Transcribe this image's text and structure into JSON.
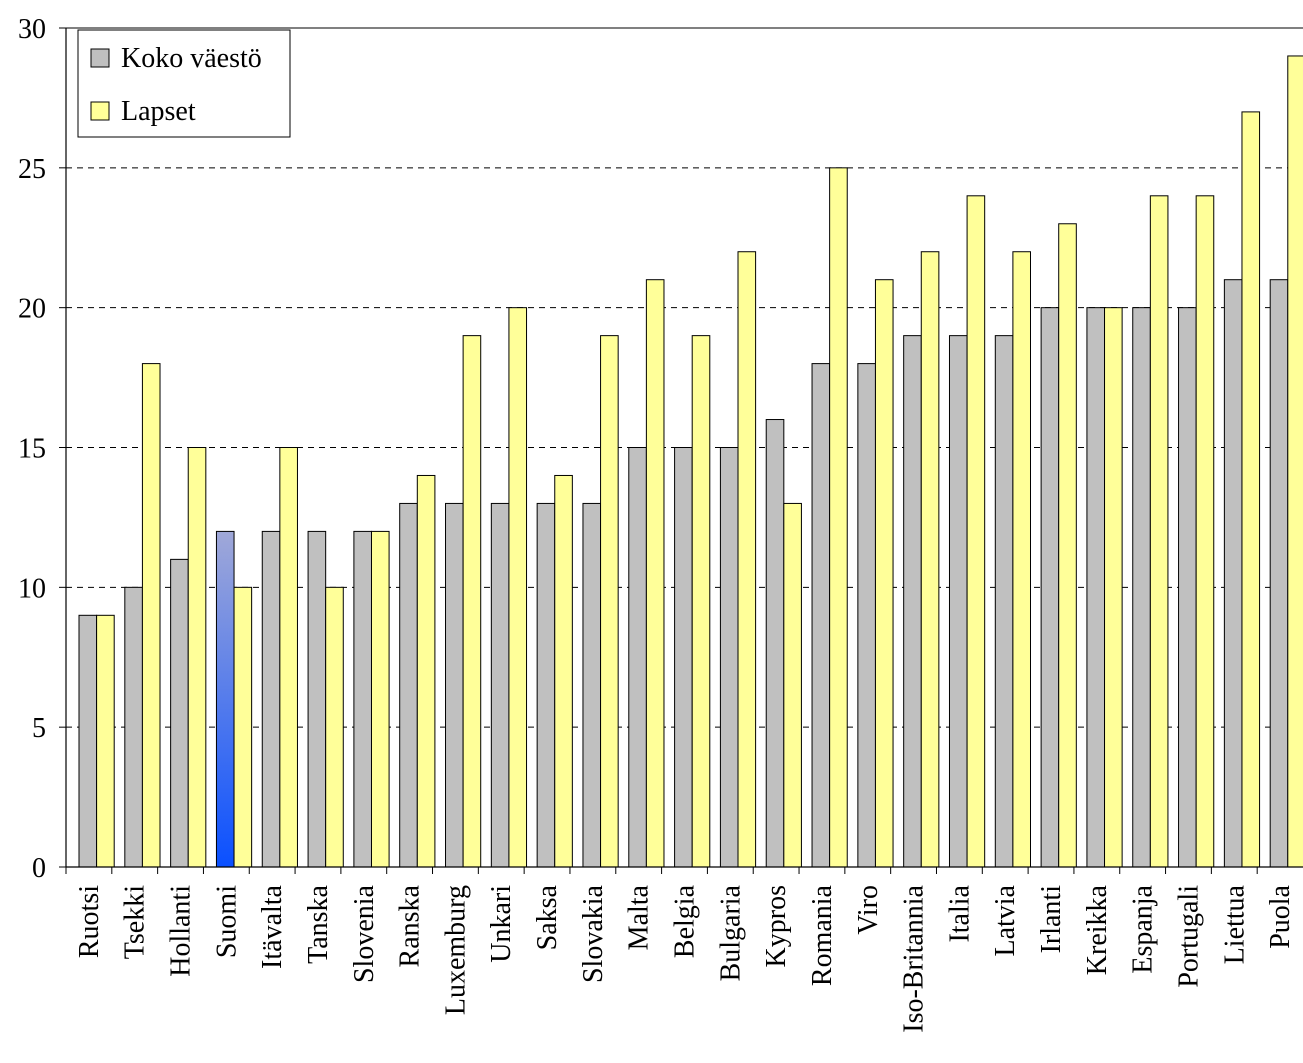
{
  "chart_data": {
    "type": "bar",
    "categories": [
      "Ruotsi",
      "Tsekki",
      "Hollanti",
      "Suomi",
      "Itävalta",
      "Tanska",
      "Slovenia",
      "Ranska",
      "Luxemburg",
      "Unkari",
      "Saksa",
      "Slovakia",
      "Malta",
      "Belgia",
      "Bulgaria",
      "Kypros",
      "Romania",
      "Viro",
      "Iso-Britannia",
      "Italia",
      "Latvia",
      "Irlanti",
      "Kreikka",
      "Espanja",
      "Portugali",
      "Liettua",
      "Puola"
    ],
    "series": [
      {
        "name": "Koko väestö",
        "color": "#c0c0c0",
        "values": [
          9,
          10,
          11,
          12,
          12,
          12,
          12,
          13,
          13,
          13,
          13,
          13,
          15,
          15,
          15,
          16,
          18,
          18,
          19,
          19,
          19,
          20,
          20,
          20,
          20,
          21,
          21
        ]
      },
      {
        "name": "Lapset",
        "color": "#ffff99",
        "values": [
          9,
          18,
          15,
          10,
          15,
          10,
          12,
          14,
          19,
          20,
          14,
          19,
          21,
          19,
          22,
          13,
          25,
          21,
          22,
          24,
          22,
          23,
          20,
          24,
          24,
          27,
          29
        ]
      }
    ],
    "highlight": {
      "category": "Suomi",
      "series": "Koko väestö",
      "color_top": "#a0a8d8",
      "color_bottom": "#0a50ff"
    },
    "ylim": [
      0,
      30
    ],
    "yticks": [
      "0",
      "5",
      "10",
      "15",
      "20",
      "25",
      "30"
    ],
    "grid": "dashed horizontal",
    "legend_placement": "top-left",
    "title": "",
    "xlabel": "",
    "ylabel": ""
  }
}
